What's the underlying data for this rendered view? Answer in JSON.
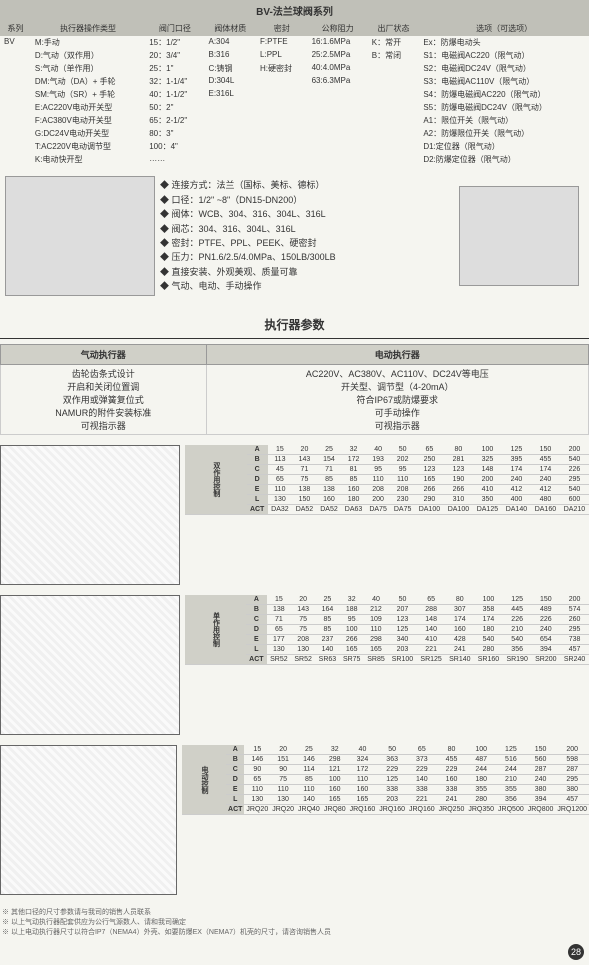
{
  "header": {
    "title": "BV-法兰球阀系列"
  },
  "specHeaders": [
    "系列",
    "执行器操作类型",
    "阀门口径",
    "阀体材质",
    "密封",
    "公称阻力",
    "出厂状态",
    "选项（可选项）"
  ],
  "specRows": [
    [
      "BV",
      "M:手动",
      "15：1/2\"",
      "A:304",
      "F:PTFE",
      "16:1.6MPa",
      "K：常开",
      "Ex：防爆电动头"
    ],
    [
      "",
      "D:气动（双作用）",
      "20：3/4\"",
      "B:316",
      "L:PPL",
      "25:2.5MPa",
      "B：常闭",
      "S1：电磁阀AC220（限气动）"
    ],
    [
      "",
      "S:气动（单作用）",
      "25：1\"",
      "C:铸钢",
      "H:硬密封",
      "40:4.0MPa",
      "",
      "S2：电磁阀DC24V（限气动）"
    ],
    [
      "",
      "DM:气动（DA）+ 手轮",
      "32：1-1/4\"",
      "D:304L",
      "",
      "63:6.3MPa",
      "",
      "S3：电磁阀AC110V（限气动）"
    ],
    [
      "",
      "SM:气动（SR）+ 手轮",
      "40：1-1/2\"",
      "E:316L",
      "",
      "",
      "",
      "S4：防爆电磁阀AC220（限气动）"
    ],
    [
      "",
      "E:AC220V电动开关型",
      "50：2\"",
      "",
      "",
      "",
      "",
      "S5：防爆电磁阀DC24V（限气动）"
    ],
    [
      "",
      "F:AC380V电动开关型",
      "65：2-1/2\"",
      "",
      "",
      "",
      "",
      "A1：限位开关（限气动）"
    ],
    [
      "",
      "G:DC24V电动开关型",
      "80：3\"",
      "",
      "",
      "",
      "",
      "A2：防爆限位开关（限气动）"
    ],
    [
      "",
      "T:AC220V电动调节型",
      "100：4\"",
      "",
      "",
      "",
      "",
      "D1:定位器（限气动）"
    ],
    [
      "",
      "K:电动快开型",
      "……",
      "",
      "",
      "",
      "",
      "D2:防爆定位器（限气动）"
    ]
  ],
  "features": [
    "连接方式：法兰（国标、美标、德标）",
    "口径：1/2\" ~8\"（DN15-DN200）",
    "阀体：WCB、304、316、304L、316L",
    "阀芯：304、316、304L、316L",
    "密封：PTFE、PPL、PEEK、硬密封",
    "压力：PN1.6/2.5/4.0MPa、150LB/300LB",
    "直接安装、外观美观、质量可靠",
    "气动、电动、手动操作"
  ],
  "execSection": {
    "title": "执行器参数",
    "pneumatic": {
      "header": "气动执行器",
      "lines": [
        "齿轮齿条式设计",
        "开启和关闭位置调",
        "双作用或弹簧复位式",
        "NAMUR的附件安装标准",
        "可视指示器"
      ]
    },
    "electric": {
      "header": "电动执行器",
      "lines": [
        "AC220V、AC380V、AC110V、DC24V等电压",
        "开关型、调节型（4-20mA）",
        "符合IP67或防爆要求",
        "可手动操作",
        "可视指示器"
      ]
    }
  },
  "tables": [
    {
      "label": "双作用控制",
      "rows": [
        [
          "A",
          "15",
          "20",
          "25",
          "32",
          "40",
          "50",
          "65",
          "80",
          "100",
          "125",
          "150",
          "200"
        ],
        [
          "B",
          "113",
          "143",
          "154",
          "172",
          "193",
          "202",
          "250",
          "281",
          "325",
          "395",
          "455",
          "540"
        ],
        [
          "C",
          "45",
          "71",
          "71",
          "81",
          "95",
          "95",
          "123",
          "123",
          "148",
          "174",
          "174",
          "226"
        ],
        [
          "D",
          "65",
          "75",
          "85",
          "85",
          "110",
          "110",
          "165",
          "190",
          "200",
          "240",
          "240",
          "295"
        ],
        [
          "E",
          "110",
          "138",
          "138",
          "160",
          "208",
          "208",
          "266",
          "266",
          "410",
          "412",
          "412",
          "540"
        ],
        [
          "L",
          "130",
          "150",
          "160",
          "180",
          "200",
          "230",
          "290",
          "310",
          "350",
          "400",
          "480",
          "600"
        ],
        [
          "ACT",
          "DA32",
          "DA52",
          "DA52",
          "DA63",
          "DA75",
          "DA75",
          "DA100",
          "DA100",
          "DA125",
          "DA140",
          "DA160",
          "DA210"
        ]
      ]
    },
    {
      "label": "单作用控制",
      "rows": [
        [
          "A",
          "15",
          "20",
          "25",
          "32",
          "40",
          "50",
          "65",
          "80",
          "100",
          "125",
          "150",
          "200"
        ],
        [
          "B",
          "138",
          "143",
          "164",
          "188",
          "212",
          "207",
          "288",
          "307",
          "358",
          "445",
          "489",
          "574"
        ],
        [
          "C",
          "71",
          "75",
          "85",
          "95",
          "109",
          "123",
          "148",
          "174",
          "174",
          "226",
          "226",
          "260"
        ],
        [
          "D",
          "65",
          "75",
          "85",
          "100",
          "110",
          "125",
          "140",
          "160",
          "180",
          "210",
          "240",
          "295"
        ],
        [
          "E",
          "177",
          "208",
          "237",
          "266",
          "298",
          "340",
          "410",
          "428",
          "540",
          "540",
          "654",
          "738"
        ],
        [
          "L",
          "130",
          "130",
          "140",
          "165",
          "165",
          "203",
          "221",
          "241",
          "280",
          "356",
          "394",
          "457"
        ],
        [
          "ACT",
          "SR52",
          "SR52",
          "SR63",
          "SR75",
          "SR85",
          "SR100",
          "SR125",
          "SR140",
          "SR160",
          "SR190",
          "SR200",
          "SR240"
        ]
      ]
    },
    {
      "label": "电动控制",
      "rows": [
        [
          "A",
          "15",
          "20",
          "25",
          "32",
          "40",
          "50",
          "65",
          "80",
          "100",
          "125",
          "150",
          "200"
        ],
        [
          "B",
          "146",
          "151",
          "146",
          "298",
          "324",
          "363",
          "373",
          "455",
          "487",
          "516",
          "560",
          "598"
        ],
        [
          "C",
          "90",
          "90",
          "114",
          "121",
          "172",
          "229",
          "229",
          "229",
          "244",
          "244",
          "287",
          "287"
        ],
        [
          "D",
          "65",
          "75",
          "85",
          "100",
          "110",
          "125",
          "140",
          "160",
          "180",
          "210",
          "240",
          "295"
        ],
        [
          "E",
          "110",
          "110",
          "110",
          "160",
          "160",
          "338",
          "338",
          "338",
          "355",
          "355",
          "380",
          "380"
        ],
        [
          "L",
          "130",
          "130",
          "140",
          "165",
          "165",
          "203",
          "221",
          "241",
          "280",
          "356",
          "394",
          "457"
        ],
        [
          "ACT",
          "JRQ20",
          "JRQ20",
          "JRQ40",
          "JRQ80",
          "JRQ160",
          "JRQ160",
          "JRQ160",
          "JRQ250",
          "JRQ350",
          "JRQ500",
          "JRQ800",
          "JRQ1200"
        ]
      ]
    }
  ],
  "notes": [
    "※ 其他口径的尺寸参数请与我司的销售人员联系",
    "※ 以上气动执行器配套供应为公行气源数人、请和我司确定",
    "※ 以上电动执行器尺寸以符合IP7（NEMA4）外壳、如要防爆EX（NEMA7）机壳的尺寸，请咨询销售人员"
  ],
  "pageNumber": "28"
}
